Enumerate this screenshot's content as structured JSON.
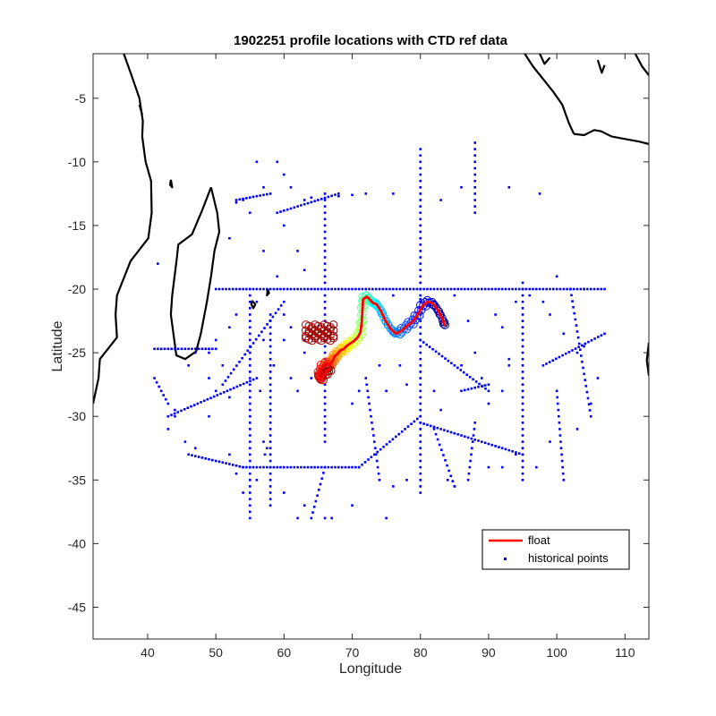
{
  "chart_data": {
    "type": "scatter",
    "title": "1902251 profile locations with CTD ref data",
    "xlabel": "Longitude",
    "ylabel": "Latitude",
    "xlim": [
      32,
      113.5
    ],
    "ylim": [
      -47.5,
      -1.5
    ],
    "xticks": [
      40,
      50,
      60,
      70,
      80,
      90,
      100,
      110
    ],
    "yticks": [
      -45,
      -40,
      -35,
      -30,
      -25,
      -20,
      -15,
      -10,
      -5
    ],
    "grid": false,
    "legend_position": "bottom-right",
    "legend": [
      {
        "label": "float",
        "color": "#ff0000",
        "style": "line"
      },
      {
        "label": "historical points",
        "color": "#0000ff",
        "style": "dot"
      }
    ],
    "series": [
      {
        "name": "float",
        "style": "line",
        "color": "#ff0000",
        "x": [
          83.6,
          83.2,
          82.5,
          81.8,
          81.0,
          80.2,
          79.5,
          78.8,
          78.0,
          77.2,
          76.4,
          75.6,
          74.8,
          74.2,
          73.6,
          73.1,
          72.7,
          72.4,
          72.1,
          71.6,
          71.5,
          71.4,
          71.2,
          70.8,
          70.2,
          69.6,
          69.1,
          68.8,
          68.3,
          67.8,
          67.4,
          67.2,
          66.9,
          66.6,
          66.2,
          65.6,
          65.2,
          65.1,
          65.4,
          66.0,
          66.4,
          66.8
        ],
        "y": [
          -22.9,
          -22.3,
          -21.6,
          -21.1,
          -21.0,
          -21.4,
          -22.1,
          -22.6,
          -22.9,
          -23.3,
          -23.5,
          -23.1,
          -22.4,
          -21.7,
          -21.2,
          -21.1,
          -20.9,
          -20.7,
          -20.6,
          -20.8,
          -21.6,
          -22.6,
          -23.4,
          -23.8,
          -24.1,
          -24.3,
          -24.5,
          -24.7,
          -24.8,
          -25.1,
          -25.3,
          -25.6,
          -25.8,
          -26.0,
          -25.8,
          -26.1,
          -26.6,
          -26.9,
          -27.1,
          -26.7,
          -26.4,
          -26.2
        ],
        "label": "float"
      },
      {
        "name": "historical points",
        "style": "dot",
        "color": "#0000ff",
        "label": "historical points"
      }
    ],
    "profile_markers": {
      "style": "open-circle",
      "colormap": "jet",
      "note_range": "profile number colored blue (early) to dark red (late)"
    },
    "historical_segments": [
      [
        50,
        -20,
        72,
        -20
      ],
      [
        72,
        -20,
        107,
        -20
      ],
      [
        46,
        -33,
        54,
        -34
      ],
      [
        54,
        -34,
        71,
        -34
      ],
      [
        71,
        -34,
        80,
        -30
      ],
      [
        80,
        -30.5,
        95,
        -33
      ],
      [
        95,
        -19.5,
        95,
        -35
      ],
      [
        80,
        -9,
        80,
        -36
      ],
      [
        55,
        -20,
        55,
        -38
      ],
      [
        51,
        -27.5,
        60,
        -21
      ],
      [
        43,
        -30,
        56,
        -27
      ],
      [
        41,
        -24.7,
        50,
        -24.7
      ],
      [
        58,
        -22,
        58,
        -37
      ],
      [
        88,
        -8.5,
        88,
        -14
      ],
      [
        102,
        -20,
        105,
        -30
      ],
      [
        98,
        -26,
        107,
        -23.5
      ],
      [
        80,
        -24,
        90,
        -28
      ],
      [
        86,
        -28,
        90,
        -27.5
      ],
      [
        100,
        -28,
        101,
        -35
      ],
      [
        72,
        -27,
        74,
        -35
      ],
      [
        82,
        -31,
        85,
        -35.5
      ],
      [
        66,
        -34,
        64,
        -38
      ],
      [
        59,
        -14,
        68,
        -12.5
      ],
      [
        66,
        -12.5,
        66,
        -32
      ],
      [
        53,
        -13,
        58,
        -12.5
      ],
      [
        43,
        -29,
        41,
        -27
      ],
      [
        88,
        -30.5,
        87,
        -35
      ]
    ],
    "historical_points": [
      [
        41.5,
        -18
      ],
      [
        43,
        -31
      ],
      [
        44,
        -30
      ],
      [
        45.5,
        -32
      ],
      [
        47,
        -32.5
      ],
      [
        49,
        -30
      ],
      [
        52,
        -33
      ],
      [
        53,
        -34.5
      ],
      [
        54,
        -36
      ],
      [
        56,
        -35
      ],
      [
        57,
        -32
      ],
      [
        57.2,
        -33
      ],
      [
        57.5,
        -32.5
      ],
      [
        60,
        -36
      ],
      [
        62,
        -38
      ],
      [
        63,
        -37
      ],
      [
        66,
        -38
      ],
      [
        67,
        -38
      ],
      [
        70,
        -37
      ],
      [
        75,
        -38
      ],
      [
        76,
        -35.5
      ],
      [
        78,
        -35
      ],
      [
        84,
        -35
      ],
      [
        85,
        -35.5
      ],
      [
        90,
        -34
      ],
      [
        92,
        -34
      ],
      [
        94,
        -33
      ],
      [
        97,
        -34
      ],
      [
        99,
        -32
      ],
      [
        103,
        -31
      ],
      [
        105,
        -29
      ],
      [
        106,
        -27
      ],
      [
        103,
        -25
      ],
      [
        104,
        -24.5
      ],
      [
        101,
        -23.5
      ],
      [
        99,
        -22
      ],
      [
        98,
        -21
      ],
      [
        96,
        -20.5
      ],
      [
        104,
        -20
      ],
      [
        100,
        -19
      ],
      [
        97.5,
        -12.5
      ],
      [
        93,
        -12
      ],
      [
        86,
        -12
      ],
      [
        83,
        -13
      ],
      [
        76,
        -12.5
      ],
      [
        72,
        -12.5
      ],
      [
        70,
        -12.6
      ],
      [
        68,
        -12.7
      ],
      [
        64,
        -12.8
      ],
      [
        63,
        -13
      ],
      [
        61,
        -12
      ],
      [
        57,
        -12
      ],
      [
        56,
        -10
      ],
      [
        54,
        -13
      ],
      [
        53,
        -13.2
      ],
      [
        52,
        -16
      ],
      [
        55,
        -14
      ],
      [
        60,
        -15
      ],
      [
        62,
        -17
      ],
      [
        63,
        -18.5
      ],
      [
        59,
        -19
      ],
      [
        57,
        -17
      ],
      [
        56,
        -21
      ],
      [
        57,
        -24
      ],
      [
        53,
        -22
      ],
      [
        52,
        -23
      ],
      [
        50,
        -24
      ],
      [
        49,
        -25
      ],
      [
        47,
        -25
      ],
      [
        46,
        -26
      ],
      [
        44,
        -29.5
      ],
      [
        49,
        -27
      ],
      [
        50,
        -28
      ],
      [
        51,
        -26
      ],
      [
        52,
        -28.5
      ],
      [
        55,
        -30
      ],
      [
        56.5,
        -28
      ],
      [
        58.5,
        -26
      ],
      [
        60,
        -24
      ],
      [
        61,
        -27
      ],
      [
        62,
        -28
      ],
      [
        63,
        -25
      ],
      [
        64,
        -27
      ],
      [
        70,
        -29
      ],
      [
        71,
        -28
      ],
      [
        74,
        -26
      ],
      [
        75,
        -28
      ],
      [
        77,
        -26
      ],
      [
        78,
        -27.5
      ],
      [
        82,
        -28
      ],
      [
        83,
        -29.5
      ],
      [
        86,
        -26
      ],
      [
        87,
        -22.5
      ],
      [
        88,
        -25
      ],
      [
        89,
        -27
      ],
      [
        90,
        -29
      ],
      [
        92,
        -28
      ],
      [
        93,
        -26
      ],
      [
        91,
        -22
      ],
      [
        92,
        -23
      ],
      [
        93,
        -25.5
      ],
      [
        94,
        -21
      ],
      [
        85,
        -20.5
      ],
      [
        80,
        -20.8
      ],
      [
        76,
        -20.5
      ],
      [
        74,
        -21.5
      ],
      [
        60,
        -22
      ],
      [
        61,
        -23
      ],
      [
        63,
        -24
      ],
      [
        59,
        -10
      ],
      [
        60,
        -11
      ],
      [
        49,
        -24.7
      ],
      [
        42,
        -24.7
      ]
    ]
  }
}
